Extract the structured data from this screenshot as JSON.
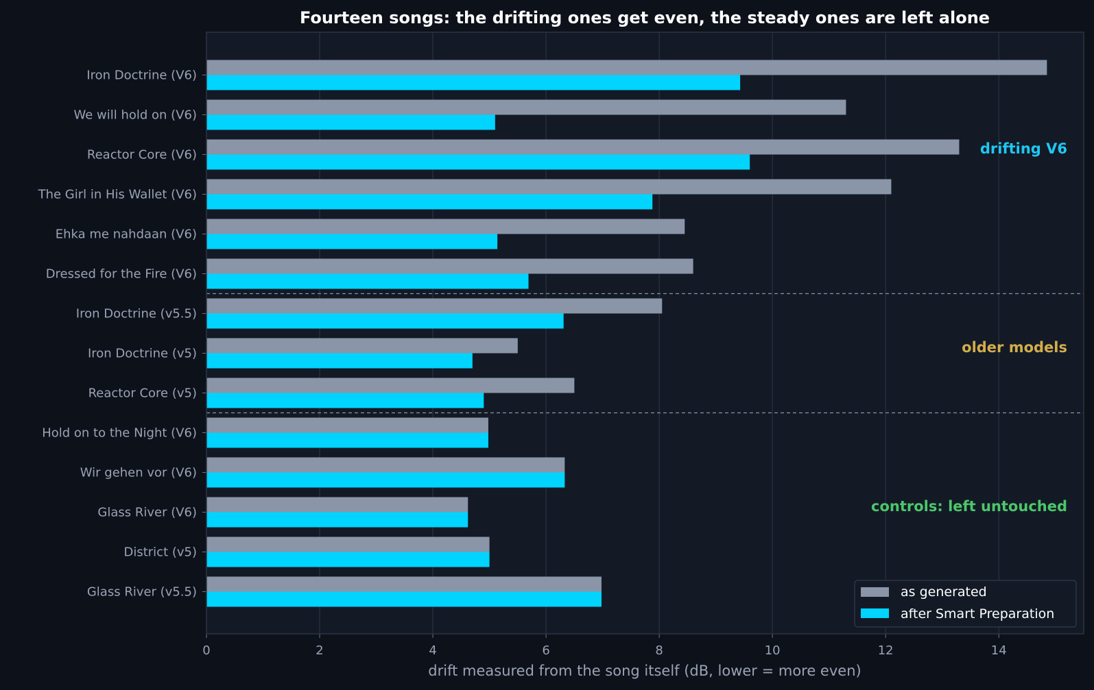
{
  "chart_data": {
    "type": "bar",
    "orientation": "horizontal",
    "title": "Fourteen songs: the drifting ones get even, the steady ones are left alone",
    "xlabel": "drift measured from the song itself (dB, lower = more even)",
    "xlim": [
      0,
      15.5
    ],
    "xticks": [
      "0",
      "2",
      "4",
      "6",
      "8",
      "10",
      "12",
      "14"
    ],
    "grid": "vertical",
    "legend_position": "bottom-right",
    "categories": [
      "Iron Doctrine (V6)",
      "We will hold on (V6)",
      "Reactor Core (V6)",
      "The Girl in His Wallet (V6)",
      "Ehka me nahdaan (V6)",
      "Dressed for the Fire (V6)",
      "Iron Doctrine (v5.5)",
      "Iron Doctrine (v5)",
      "Reactor Core (v5)",
      "Hold on to the Night (V6)",
      "Wir gehen vor (V6)",
      "Glass River (V6)",
      "District (v5)",
      "Glass River (v5.5)"
    ],
    "series": [
      {
        "name": "as generated",
        "color": "#8a95a8",
        "values": [
          14.85,
          11.3,
          13.3,
          12.1,
          8.45,
          8.6,
          8.05,
          5.5,
          6.5,
          4.98,
          6.33,
          4.62,
          5.0,
          6.98
        ]
      },
      {
        "name": "after Smart Preparation",
        "color": "#00d4ff",
        "values": [
          9.43,
          5.1,
          9.6,
          7.88,
          5.14,
          5.69,
          6.31,
          4.7,
          4.9,
          4.98,
          6.33,
          4.62,
          5.0,
          6.98
        ]
      }
    ],
    "groups": [
      {
        "label": "drifting V6",
        "color": "#1ec8f2"
      },
      {
        "label": "older models",
        "color": "#d4ad4a"
      },
      {
        "label": "controls: left untouched",
        "color": "#4cc76a"
      }
    ]
  }
}
